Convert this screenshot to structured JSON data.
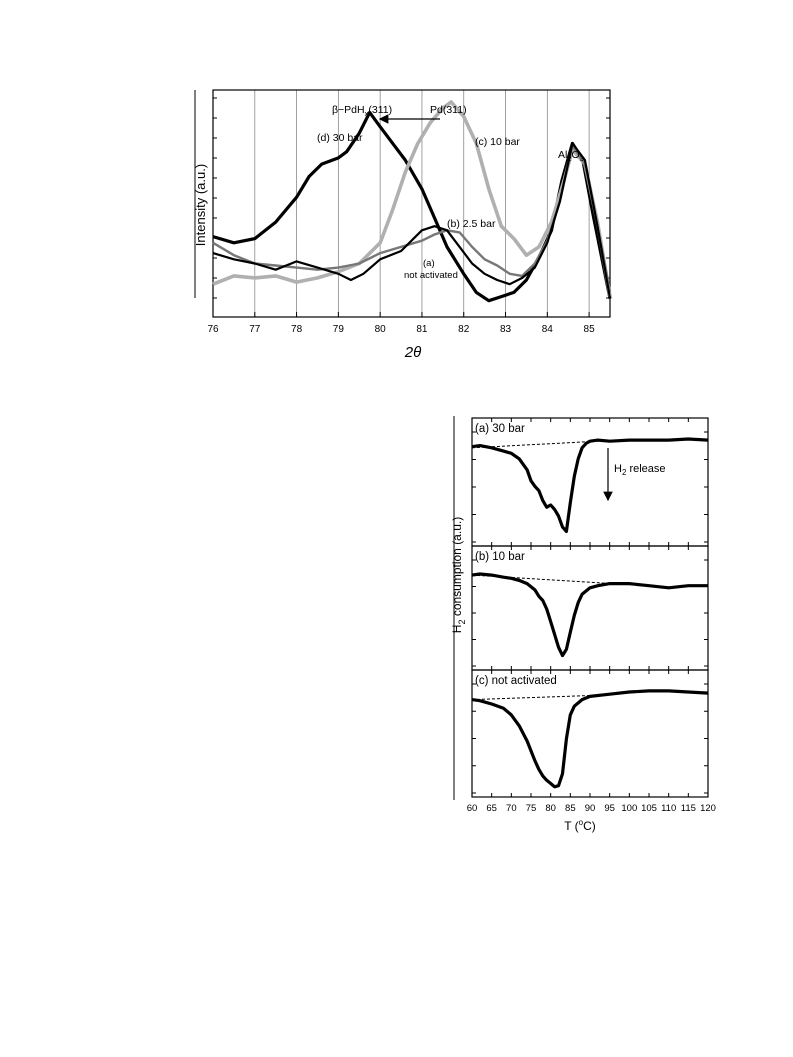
{
  "chart_data": [
    {
      "type": "line",
      "xlabel": "2θ",
      "ylabel": "Intensity (a.u.)",
      "xlim": [
        76,
        85.5
      ],
      "ylim": [
        0,
        1
      ],
      "x_ticks": [
        "76",
        "77",
        "78",
        "79",
        "80",
        "81",
        "82",
        "83",
        "84",
        "85"
      ],
      "grid": "vertical",
      "annotations": [
        {
          "key": "pd_peak",
          "text": "Pd(311)",
          "x": 81.7,
          "y": 0.995
        },
        {
          "key": "pdhx_peak",
          "text": "β−PdHx(311)",
          "x": 79.5,
          "y": 0.96
        },
        {
          "key": "al2o3_peak",
          "text": "Al2O3",
          "x": 84.4,
          "y": 0.83
        },
        {
          "key": "shift_arrow",
          "text": "",
          "x_from": 81.5,
          "x_to": 80.0,
          "y": 0.935
        }
      ],
      "labels": {
        "d": "(d) 30 bar",
        "c": "(c) 10 bar",
        "b": "(b) 2.5 bar",
        "a1": "(a)",
        "a2": "not activated",
        "al_main": "Al",
        "al_sub1": "2",
        "al_mid": "O",
        "al_sub2": "3",
        "beta_main": "β−PdH",
        "beta_sub": "x",
        "beta_tail": "(311)"
      },
      "series": [
        {
          "name": "(d) 30 bar",
          "color": "#000000",
          "x": [
            76,
            76.5,
            77,
            77.5,
            78,
            78.3,
            78.6,
            79,
            79.2,
            79.5,
            79.75,
            80,
            80.3,
            80.6,
            81,
            81.3,
            81.6,
            82,
            82.3,
            82.6,
            82.9,
            83.2,
            83.5,
            83.8,
            84.1,
            84.35,
            84.6,
            84.85,
            85.1,
            85.5
          ],
          "y": [
            0.35,
            0.32,
            0.34,
            0.42,
            0.54,
            0.64,
            0.7,
            0.73,
            0.76,
            0.85,
            0.95,
            0.88,
            0.8,
            0.72,
            0.58,
            0.44,
            0.3,
            0.17,
            0.08,
            0.04,
            0.06,
            0.08,
            0.14,
            0.25,
            0.38,
            0.62,
            0.8,
            0.72,
            0.45,
            0.05
          ]
        },
        {
          "name": "(c) 10 bar",
          "color": "#b0b0b0",
          "x": [
            76,
            76.5,
            77,
            77.5,
            78,
            78.5,
            79,
            79.5,
            80,
            80.3,
            80.6,
            80.9,
            81.2,
            81.5,
            81.7,
            82,
            82.3,
            82.6,
            82.9,
            83.2,
            83.5,
            83.8,
            84.1,
            84.4,
            84.6,
            84.9,
            85.2,
            85.5
          ],
          "y": [
            0.12,
            0.16,
            0.15,
            0.16,
            0.13,
            0.15,
            0.18,
            0.22,
            0.32,
            0.48,
            0.66,
            0.8,
            0.9,
            0.97,
            1.0,
            0.93,
            0.8,
            0.58,
            0.4,
            0.34,
            0.26,
            0.3,
            0.42,
            0.62,
            0.77,
            0.7,
            0.42,
            0.06
          ]
        },
        {
          "name": "(b) 2.5 bar",
          "color": "#777777",
          "x": [
            76,
            76.5,
            77,
            77.5,
            78,
            78.5,
            79,
            79.5,
            80,
            80.5,
            81,
            81.3,
            81.6,
            81.9,
            82.2,
            82.5,
            82.8,
            83.1,
            83.4,
            83.7,
            84,
            84.3,
            84.6,
            84.9,
            85.2,
            85.5
          ],
          "y": [
            0.32,
            0.26,
            0.22,
            0.21,
            0.2,
            0.19,
            0.2,
            0.22,
            0.27,
            0.3,
            0.33,
            0.36,
            0.38,
            0.37,
            0.3,
            0.24,
            0.21,
            0.17,
            0.16,
            0.22,
            0.33,
            0.52,
            0.79,
            0.7,
            0.4,
            0.08
          ]
        },
        {
          "name": "(a) not activated",
          "color": "#000000",
          "x": [
            76,
            76.5,
            77,
            77.5,
            78,
            78.5,
            79,
            79.3,
            79.6,
            80,
            80.5,
            81,
            81.3,
            81.6,
            81.9,
            82.2,
            82.5,
            82.8,
            83.1,
            83.4,
            83.7,
            84,
            84.3,
            84.6,
            84.9,
            85.2,
            85.5
          ],
          "y": [
            0.27,
            0.24,
            0.22,
            0.19,
            0.23,
            0.2,
            0.17,
            0.14,
            0.17,
            0.24,
            0.28,
            0.38,
            0.4,
            0.38,
            0.3,
            0.22,
            0.17,
            0.14,
            0.12,
            0.15,
            0.2,
            0.32,
            0.52,
            0.8,
            0.72,
            0.4,
            0.05
          ]
        }
      ]
    },
    {
      "type": "line",
      "xlabel": "T (°C)",
      "xlabel_parts": {
        "pre": "T (",
        "sup": "o",
        "post": "C)"
      },
      "ylabel": "H2 consumption (a.u.)",
      "ylabel_parts": {
        "main": "H",
        "sub": "2",
        "tail": " consumption (a.u.)"
      },
      "xlim": [
        60,
        120
      ],
      "ylim": [
        0,
        1
      ],
      "x_ticks": [
        "60",
        "65",
        "70",
        "75",
        "80",
        "85",
        "90",
        "95",
        "100",
        "105",
        "110",
        "115",
        "120"
      ],
      "arrow_label": {
        "main": "H",
        "sub": "2",
        "tail": " release"
      },
      "arrow_x": 93,
      "panels": [
        {
          "label": "(a) 30 bar",
          "baseline": {
            "x": [
              60,
              92
            ],
            "y": [
              0.82,
              0.88
            ]
          },
          "x": [
            60,
            62,
            65,
            68,
            70,
            72,
            74,
            75,
            76,
            77,
            78,
            79,
            80,
            81,
            82,
            83,
            84,
            85,
            86,
            87,
            88,
            89,
            90,
            92,
            95,
            100,
            105,
            110,
            115,
            120
          ],
          "y": [
            0.83,
            0.84,
            0.82,
            0.79,
            0.77,
            0.72,
            0.62,
            0.52,
            0.47,
            0.43,
            0.34,
            0.28,
            0.3,
            0.26,
            0.2,
            0.1,
            0.06,
            0.32,
            0.56,
            0.72,
            0.82,
            0.86,
            0.88,
            0.89,
            0.88,
            0.89,
            0.89,
            0.89,
            0.9,
            0.89
          ]
        },
        {
          "label": "(b) 10 bar",
          "baseline": {
            "x": [
              60,
              100
            ],
            "y": [
              0.82,
              0.73
            ]
          },
          "x": [
            60,
            62,
            65,
            68,
            70,
            72,
            74,
            76,
            77,
            78,
            79,
            80,
            81,
            82,
            83,
            84,
            85,
            86,
            87,
            88,
            90,
            92,
            95,
            100,
            105,
            110,
            115,
            120
          ],
          "y": [
            0.82,
            0.83,
            0.82,
            0.8,
            0.79,
            0.77,
            0.74,
            0.68,
            0.62,
            0.58,
            0.5,
            0.38,
            0.26,
            0.14,
            0.06,
            0.12,
            0.28,
            0.44,
            0.56,
            0.64,
            0.7,
            0.72,
            0.74,
            0.74,
            0.72,
            0.7,
            0.72,
            0.72
          ]
        },
        {
          "label": "(c) not activated",
          "baseline": {
            "x": [
              60,
              92
            ],
            "y": [
              0.82,
              0.86
            ]
          },
          "x": [
            60,
            62,
            65,
            68,
            70,
            72,
            74,
            76,
            77,
            78,
            79,
            80,
            81,
            82,
            83,
            84,
            85,
            86,
            88,
            90,
            95,
            100,
            105,
            110,
            115,
            120
          ],
          "y": [
            0.82,
            0.81,
            0.78,
            0.74,
            0.68,
            0.58,
            0.44,
            0.26,
            0.18,
            0.12,
            0.08,
            0.05,
            0.02,
            0.03,
            0.14,
            0.46,
            0.68,
            0.76,
            0.82,
            0.85,
            0.87,
            0.89,
            0.9,
            0.9,
            0.89,
            0.88
          ]
        }
      ]
    }
  ]
}
